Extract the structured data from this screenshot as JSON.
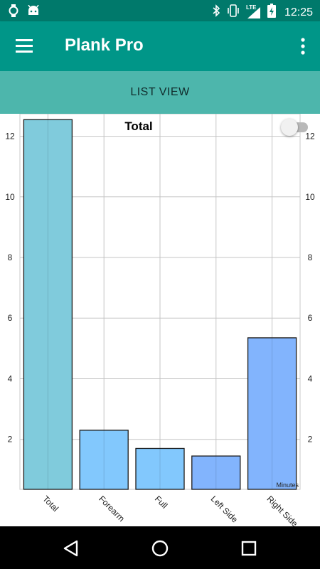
{
  "status_bar": {
    "time": "12:25",
    "network_label": "LTE",
    "icons": [
      "watch-icon",
      "android-icon",
      "bluetooth-icon",
      "vibrate-icon",
      "signal-icon",
      "battery-charging-icon"
    ]
  },
  "app_bar": {
    "title": "Plank Pro",
    "menu_icon": "hamburger-menu-icon",
    "overflow_icon": "more-vert-icon"
  },
  "list_view_button": "LIST VIEW",
  "chart_toggle": {
    "on": false
  },
  "colors": {
    "status_bar": "#00796b",
    "app_bar": "#009688",
    "list_bar": "#4db6ac",
    "bar_total": "#80cbdc",
    "bar_forearm": "#82c8fd",
    "bar_full": "#82c8fd",
    "bar_left_side": "#82b4fd",
    "bar_right_side": "#82b4fd"
  },
  "chart_data": {
    "type": "bar",
    "title": "Total",
    "categories": [
      "Total",
      "Forearm",
      "Full",
      "Left Side",
      "Right Side"
    ],
    "values": [
      12.55,
      2.3,
      1.7,
      1.45,
      5.35
    ],
    "ylim": [
      0.35,
      12.6
    ],
    "y_ticks": [
      2,
      4,
      6,
      8,
      10,
      12
    ],
    "ylabel": "",
    "xlabel": "",
    "unit_label": "Minutes",
    "grid": true,
    "legend": "none"
  },
  "nav_bar": {
    "icons": [
      "back-icon",
      "home-icon",
      "recents-icon"
    ]
  }
}
